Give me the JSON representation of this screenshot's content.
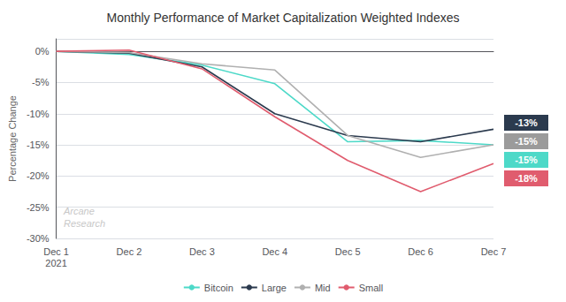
{
  "chart_data": {
    "type": "line",
    "title": "Monthly Performance of Market Capitalization Weighted Indexes",
    "categories": [
      "Dec 1\n2021",
      "Dec 2",
      "Dec 3",
      "Dec 4",
      "Dec 5",
      "Dec 6",
      "Dec 7"
    ],
    "ylabel": "Percentage Change",
    "series": [
      {
        "name": "Bitcoin",
        "color": "#4DD9C8",
        "values": [
          0,
          -0.5,
          -2.2,
          -5.2,
          -14.5,
          -14.3,
          -15.0
        ]
      },
      {
        "name": "Large",
        "color": "#2B3A4E",
        "values": [
          0,
          -0.3,
          -2.5,
          -10.0,
          -13.5,
          -14.5,
          -12.5
        ]
      },
      {
        "name": "Mid",
        "color": "#B0B0B0",
        "values": [
          0,
          -0.2,
          -2.0,
          -3.0,
          -13.5,
          -17.0,
          -15.0
        ]
      },
      {
        "name": "Small",
        "color": "#E05C6E",
        "values": [
          0,
          0.2,
          -2.8,
          -10.5,
          -17.5,
          -22.5,
          -18.0
        ]
      }
    ],
    "ylim": [
      -30,
      2
    ],
    "yticks": [
      {
        "value": 0,
        "label": "0%"
      },
      {
        "value": -5,
        "label": "-5%"
      },
      {
        "value": -10,
        "label": "-10%"
      },
      {
        "value": -15,
        "label": "-15%"
      },
      {
        "value": -20,
        "label": "-20%"
      },
      {
        "value": -25,
        "label": "-25%"
      },
      {
        "value": -30,
        "label": "-30%"
      }
    ],
    "grid": true,
    "legend": "bottom",
    "annotations": [
      {
        "text": "-13%",
        "color": "#2B3A4E"
      },
      {
        "text": "-15%",
        "color": "#9B9B9B"
      },
      {
        "text": "-15%",
        "color": "#4DD9C8"
      },
      {
        "text": "-18%",
        "color": "#E05C6E"
      },
      {
        "text": "Arcane\nResearch"
      }
    ]
  }
}
